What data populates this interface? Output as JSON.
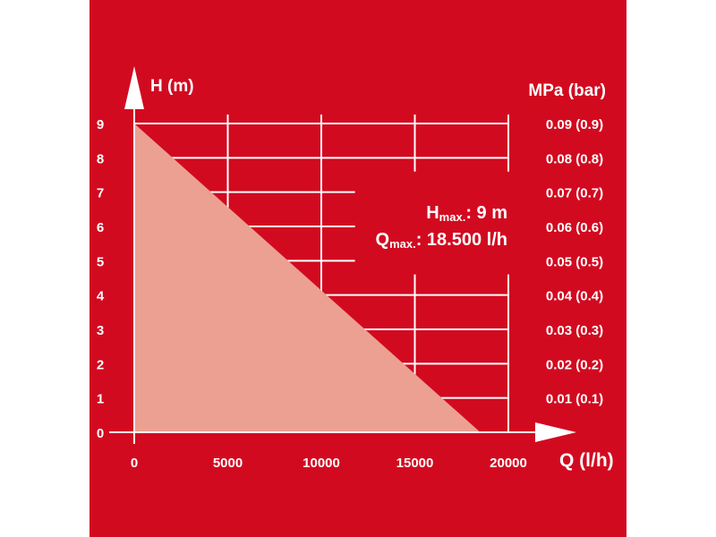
{
  "colors": {
    "background": "#d20a20",
    "grid": "#ffffff",
    "fill_area": "#eca092",
    "text": "#ffffff"
  },
  "chart_data": {
    "type": "area",
    "ylabel": "H (m)",
    "xlabel": "Q (l/h)",
    "y2label": "MPa (bar)",
    "xlim": [
      0,
      20000
    ],
    "ylim": [
      0,
      9
    ],
    "x_ticks": [
      "0",
      "5000",
      "10000",
      "15000",
      "20000"
    ],
    "y_ticks": [
      "0",
      "1",
      "2",
      "3",
      "4",
      "5",
      "6",
      "7",
      "8",
      "9"
    ],
    "y2_ticks": [
      "0.01 (0.1)",
      "0.02 (0.2)",
      "0.03 (0.3)",
      "0.04 (0.4)",
      "0.05 (0.5)",
      "0.06 (0.6)",
      "0.07 (0.7)",
      "0.08 (0.8)",
      "0.09 (0.9)"
    ],
    "series": [
      {
        "x": [
          0,
          18500
        ],
        "y": [
          9,
          0
        ]
      }
    ],
    "annotation": {
      "hmax_main": "H",
      "hmax_sub": "max.",
      "hmax_rest": ": 9 m",
      "qmax_main": "Q",
      "qmax_sub": "max.",
      "qmax_rest": ": 18.500 l/h"
    },
    "grid": true
  }
}
